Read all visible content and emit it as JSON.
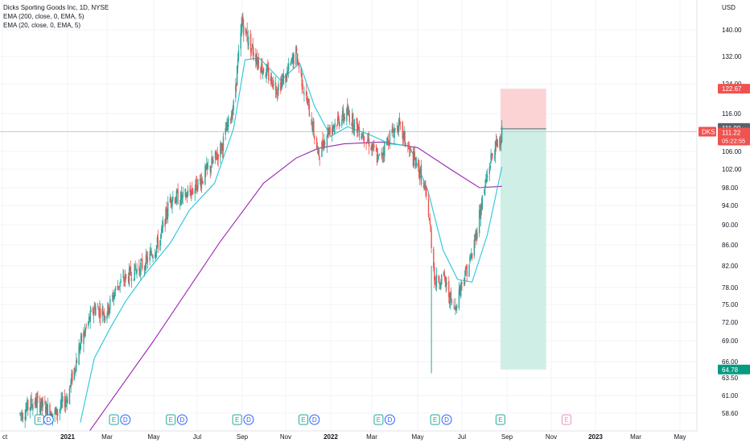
{
  "legend": {
    "title": "Dicks Sporting Goods Inc, 1D, NYSE",
    "ema200": "EMA (200, close, 0, EMA, 5)",
    "ema20": "EMA (20, close, 0, EMA, 5)"
  },
  "colors": {
    "up": "#26a69a",
    "down": "#ef5350",
    "ema20": "#26c6da",
    "ema200": "#9c27b0",
    "stop_zone": "#fcd3d5",
    "target_zone": "#cfeee6",
    "red_badge": "#ef5350",
    "green_badge": "#089981",
    "gray_badge": "#5d606b"
  },
  "chart_data": {
    "type": "candlestick",
    "title": "Dicks Sporting Goods Inc, 1D, NYSE",
    "symbol": "DKS",
    "currency": "USD",
    "y_ticks": [
      "140.00",
      "132.00",
      "124.00",
      "116.00",
      "106.00",
      "102.00",
      "98.00",
      "94.00",
      "90.00",
      "86.00",
      "82.00",
      "78.00",
      "75.00",
      "72.00",
      "69.00",
      "66.00",
      "63.50",
      "61.00",
      "58.60"
    ],
    "x_ticks": [
      "ct",
      "2021",
      "Mar",
      "May",
      "Jul",
      "Sep",
      "Nov",
      "2022",
      "Mar",
      "May",
      "Jul",
      "Sep",
      "Nov",
      "2023",
      "Mar",
      "May"
    ],
    "ylim": [
      57,
      146
    ],
    "xlim": [
      "2020-10-15",
      "2023-06-10"
    ],
    "candles": [
      [
        "2020-10-26",
        58.5
      ],
      [
        "2020-11-15",
        60.2
      ],
      [
        "2020-12-15",
        58.5
      ],
      [
        "2021-01-01",
        60.8
      ],
      [
        "2021-01-20",
        68.5
      ],
      [
        "2021-02-10",
        74.5
      ],
      [
        "2021-02-28",
        73.5
      ],
      [
        "2021-03-15",
        78.5
      ],
      [
        "2021-04-01",
        80.5
      ],
      [
        "2021-04-20",
        82.5
      ],
      [
        "2021-05-10",
        87.0
      ],
      [
        "2021-05-25",
        96.0
      ],
      [
        "2021-06-10",
        95.5
      ],
      [
        "2021-06-25",
        97.5
      ],
      [
        "2021-07-10",
        100.5
      ],
      [
        "2021-07-25",
        104.0
      ],
      [
        "2021-08-05",
        108.0
      ],
      [
        "2021-08-20",
        118.0
      ],
      [
        "2021-08-27",
        132.0
      ],
      [
        "2021-09-01",
        142.0
      ],
      [
        "2021-09-10",
        136.5
      ],
      [
        "2021-09-25",
        130.0
      ],
      [
        "2021-10-05",
        127.0
      ],
      [
        "2021-10-20",
        123.0
      ],
      [
        "2021-11-01",
        126.0
      ],
      [
        "2021-11-15",
        133.0
      ],
      [
        "2021-11-25",
        123.0
      ],
      [
        "2021-12-05",
        115.0
      ],
      [
        "2021-12-15",
        105.0
      ],
      [
        "2021-12-28",
        111.5
      ],
      [
        "2022-01-10",
        114.0
      ],
      [
        "2022-01-25",
        116.0
      ],
      [
        "2022-02-10",
        112.0
      ],
      [
        "2022-02-25",
        108.5
      ],
      [
        "2022-03-10",
        104.0
      ],
      [
        "2022-03-25",
        110.0
      ],
      [
        "2022-04-05",
        113.0
      ],
      [
        "2022-04-20",
        106.0
      ],
      [
        "2022-05-05",
        101.0
      ],
      [
        "2022-05-15",
        94.0
      ],
      [
        "2022-05-25",
        79.0
      ],
      [
        "2022-06-05",
        80.0
      ],
      [
        "2022-06-20",
        74.0
      ],
      [
        "2022-07-01",
        79.0
      ],
      [
        "2022-07-15",
        84.0
      ],
      [
        "2022-07-30",
        96.0
      ],
      [
        "2022-08-10",
        104.5
      ],
      [
        "2022-08-20",
        108.5
      ],
      [
        "2022-08-25",
        111.2
      ]
    ],
    "series": [
      {
        "name": "EMA (200, close, 0, EMA, 5)",
        "points": [
          [
            "2021-01-20",
            55.0
          ],
          [
            "2021-05-01",
            69.0
          ],
          [
            "2021-08-01",
            86.5
          ],
          [
            "2021-10-01",
            99.0
          ],
          [
            "2021-11-15",
            104.5
          ],
          [
            "2021-12-15",
            106.8
          ],
          [
            "2022-01-20",
            108.0
          ],
          [
            "2022-03-15",
            108.5
          ],
          [
            "2022-05-01",
            107.0
          ],
          [
            "2022-06-15",
            102.0
          ],
          [
            "2022-07-25",
            98.0
          ],
          [
            "2022-08-25",
            98.3
          ]
        ]
      },
      {
        "name": "EMA (20, close, 0, EMA, 5)",
        "points": [
          [
            "2021-01-20",
            57.5
          ],
          [
            "2021-02-10",
            66.5
          ],
          [
            "2021-03-05",
            71.0
          ],
          [
            "2021-03-25",
            75.5
          ],
          [
            "2021-04-20",
            80.5
          ],
          [
            "2021-05-25",
            86.5
          ],
          [
            "2021-06-20",
            93.0
          ],
          [
            "2021-07-25",
            99.0
          ],
          [
            "2021-08-20",
            112.0
          ],
          [
            "2021-09-05",
            131.0
          ],
          [
            "2021-09-25",
            131.5
          ],
          [
            "2021-10-25",
            125.0
          ],
          [
            "2021-11-20",
            130.0
          ],
          [
            "2021-12-10",
            118.0
          ],
          [
            "2022-01-01",
            110.0
          ],
          [
            "2022-01-25",
            112.5
          ],
          [
            "2022-02-25",
            110.5
          ],
          [
            "2022-03-25",
            108.0
          ],
          [
            "2022-04-20",
            107.5
          ],
          [
            "2022-05-15",
            97.5
          ],
          [
            "2022-06-05",
            85.0
          ],
          [
            "2022-06-25",
            79.5
          ],
          [
            "2022-07-15",
            79.0
          ],
          [
            "2022-08-05",
            88.0
          ],
          [
            "2022-08-25",
            102.5
          ]
        ]
      }
    ],
    "position": {
      "start": "2022-08-23",
      "end": "2022-10-25",
      "stop": 122.67,
      "entry": 111.99,
      "target": 64.78
    },
    "events": [
      {
        "date": "2020-11-22",
        "label": "E"
      },
      {
        "date": "2020-12-05",
        "label": "D"
      },
      {
        "date": "2021-03-10",
        "label": "E"
      },
      {
        "date": "2021-03-25",
        "label": "D"
      },
      {
        "date": "2021-05-25",
        "label": "E"
      },
      {
        "date": "2021-06-10",
        "label": "D"
      },
      {
        "date": "2021-08-25",
        "label": "E"
      },
      {
        "date": "2021-09-10",
        "label": "D"
      },
      {
        "date": "2021-11-25",
        "label": "E"
      },
      {
        "date": "2021-12-10",
        "label": "D"
      },
      {
        "date": "2022-03-10",
        "label": "E"
      },
      {
        "date": "2022-03-25",
        "label": "D"
      },
      {
        "date": "2022-05-25",
        "label": "E"
      },
      {
        "date": "2022-06-10",
        "label": "D"
      },
      {
        "date": "2022-08-23",
        "label": "E"
      },
      {
        "date": "2022-11-22",
        "label": "E",
        "future": true
      }
    ],
    "price_labels": {
      "stop_badge": "122.67",
      "entry_badge": "111.99",
      "last_symbol": "DKS",
      "last_price": "111.22",
      "countdown": "05:22:55",
      "target_badge": "64.78"
    }
  }
}
